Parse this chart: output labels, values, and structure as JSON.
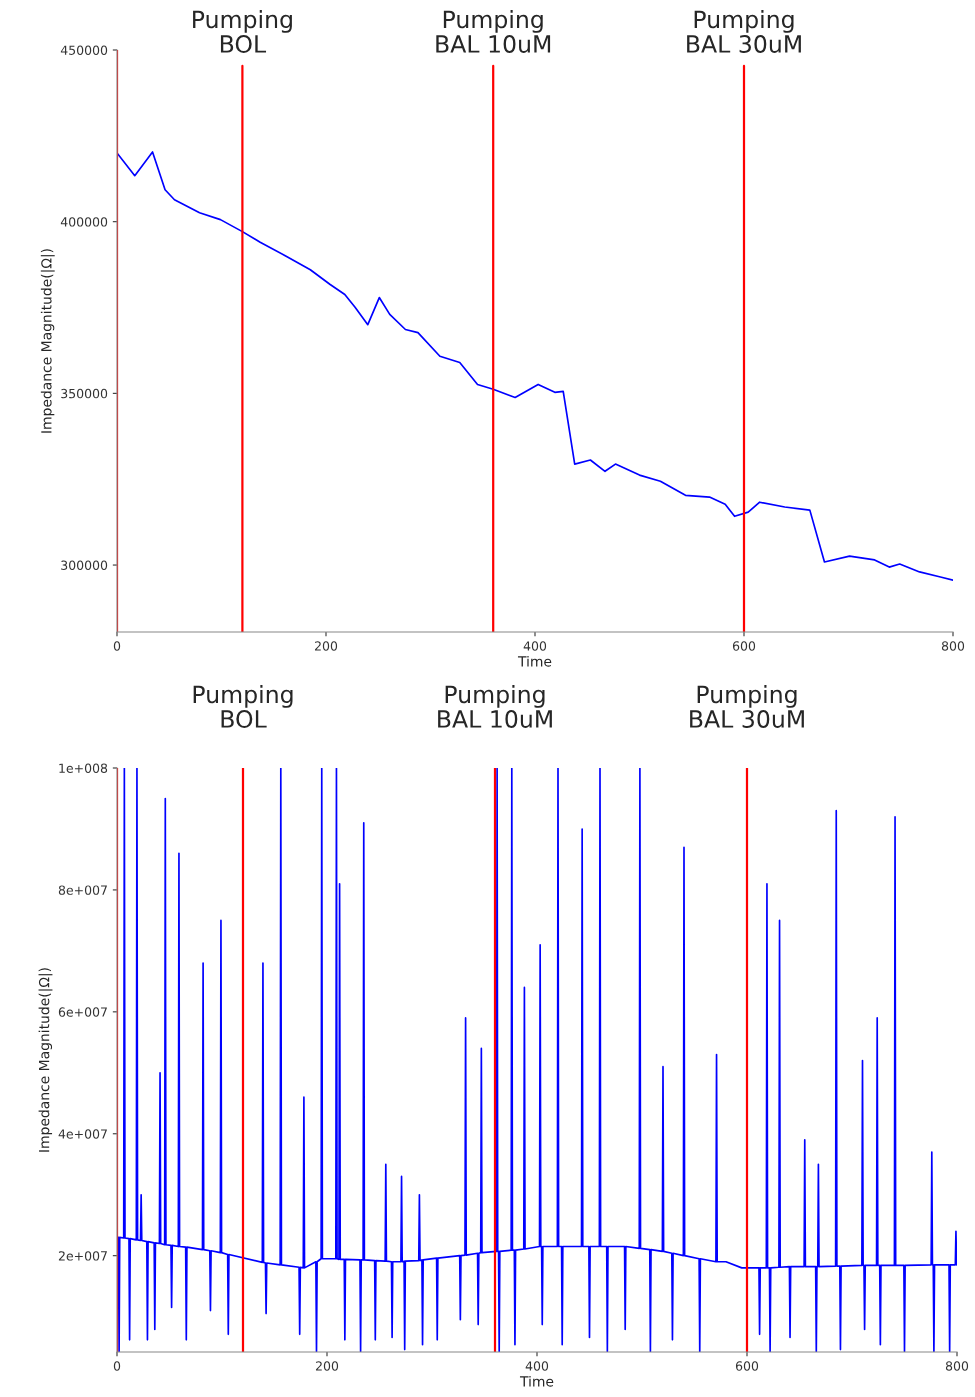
{
  "chart_data": [
    {
      "type": "line",
      "xlabel": "Time",
      "ylabel": "Impedance Magnitude(|Ω|)",
      "xlim": [
        0,
        800
      ],
      "ylim": [
        280500,
        450000
      ],
      "xticks": [
        0,
        200,
        400,
        600,
        800
      ],
      "yticks": [
        300000,
        350000,
        400000,
        450000
      ],
      "grid": false,
      "legend": false,
      "ref_lines": [
        {
          "axis": "x",
          "value": 0,
          "color": "#ff0000"
        },
        {
          "axis": "x",
          "value": 120,
          "label": "Pumping\nBOL",
          "color": "#ff0000"
        },
        {
          "axis": "x",
          "value": 360,
          "label": "Pumping\nBAL 10uM",
          "color": "#ff0000"
        },
        {
          "axis": "x",
          "value": 600,
          "label": "Pumping\nBAL 30uM",
          "color": "#ff0000"
        }
      ],
      "series": [
        {
          "color": "#0000ff",
          "x": [
            0,
            17,
            34,
            46,
            55,
            79,
            99,
            120,
            137,
            161,
            185,
            204,
            218,
            228,
            240,
            251,
            261,
            276,
            288,
            309,
            328,
            345,
            360,
            381,
            403,
            419,
            427,
            438,
            453,
            467,
            477,
            500,
            520,
            544,
            567,
            582,
            591,
            604,
            615,
            639,
            663,
            677,
            701,
            725,
            739,
            749,
            768,
            788,
            800
          ],
          "values": [
            420000,
            413400,
            420300,
            409300,
            406400,
            402600,
            400600,
            397100,
            394000,
            390100,
            386000,
            381700,
            378800,
            375000,
            370000,
            377900,
            373000,
            368600,
            367700,
            360800,
            359000,
            352600,
            351200,
            348800,
            352600,
            350300,
            350600,
            329400,
            330600,
            327300,
            329400,
            326200,
            324400,
            320300,
            319800,
            317700,
            314200,
            315400,
            318300,
            316900,
            316000,
            300900,
            302600,
            301500,
            299400,
            300300,
            298000,
            296500,
            295600
          ]
        }
      ]
    },
    {
      "type": "line",
      "xlabel": "Time",
      "ylabel": "Impedance Magnitude(|Ω|)",
      "xlim": [
        0,
        800
      ],
      "ylim": [
        4200000,
        100000000
      ],
      "xticks": [
        0,
        200,
        400,
        600,
        800
      ],
      "yticks": [
        {
          "value": 20000000,
          "label": "2e+007"
        },
        {
          "value": 40000000,
          "label": "4e+007"
        },
        {
          "value": 60000000,
          "label": "6e+007"
        },
        {
          "value": 80000000,
          "label": "8e+007"
        },
        {
          "value": 100000000,
          "label": "1e+008"
        }
      ],
      "grid": false,
      "legend": false,
      "ref_lines": [
        {
          "axis": "x",
          "value": 0,
          "color": "#ff0000"
        },
        {
          "axis": "x",
          "value": 120,
          "label": "Pumping\nBOL",
          "color": "#ff0000"
        },
        {
          "axis": "x",
          "value": 360,
          "label": "Pumping\nBAL 10uM",
          "color": "#ff0000"
        },
        {
          "axis": "x",
          "value": 600,
          "label": "Pumping\nBAL 30uM",
          "color": "#ff0000"
        }
      ],
      "series": [
        {
          "color": "#0000ff",
          "x": [
            0,
            1.4,
            2,
            2.6,
            6.4,
            7,
            7.6,
            11.4,
            12,
            12.6,
            18.4,
            19,
            19.6,
            22.4,
            23,
            23.6,
            28.4,
            29,
            29.6,
            35.4,
            36,
            36.6,
            40.4,
            41,
            41.6,
            45.4,
            46,
            46.6,
            51.4,
            52,
            52.6,
            58.4,
            59,
            59.6,
            65.4,
            66,
            66.6,
            81.4,
            82,
            82.6,
            88.4,
            89,
            89.6,
            98.4,
            99,
            99.6,
            105.4,
            106,
            106.6,
            138.4,
            139,
            139.6,
            141.4,
            142,
            142.6,
            155.4,
            156,
            156.6,
            173.4,
            174,
            174.6,
            177.4,
            178,
            178.6,
            189.4,
            190,
            190.6,
            194.4,
            195,
            195.6,
            208.4,
            209,
            209.6,
            211.4,
            212,
            212.6,
            216.4,
            217,
            217.6,
            231.4,
            232,
            232.6,
            234.4,
            235,
            235.6,
            245.4,
            246,
            246.6,
            255.4,
            256,
            256.6,
            261.4,
            262,
            262.6,
            270.4,
            271,
            271.6,
            273.4,
            274,
            274.6,
            287.4,
            288,
            288.6,
            290.4,
            291,
            291.6,
            304.4,
            305,
            305.6,
            326.4,
            327,
            327.6,
            331.4,
            332,
            332.6,
            343.4,
            344,
            344.6,
            346.4,
            347,
            347.6,
            361.4,
            362,
            362.6,
            363.4,
            364,
            364.6,
            375.4,
            376,
            376.6,
            378.4,
            379,
            379.6,
            387.4,
            388,
            388.6,
            402.4,
            403,
            403.6,
            404.4,
            405,
            405.6,
            419.4,
            420,
            420.6,
            423.4,
            424,
            424.6,
            442.4,
            443,
            443.6,
            449.4,
            450,
            450.6,
            459.4,
            460,
            460.6,
            466.4,
            467,
            467.6,
            483.4,
            484,
            484.6,
            497.4,
            498,
            498.6,
            507.4,
            508,
            508.6,
            519.4,
            520,
            520.6,
            528.4,
            529,
            529.6,
            539.4,
            540,
            540.6,
            554.4,
            555,
            555.6,
            570.4,
            571,
            571.6,
            580,
            595,
            611.4,
            612,
            612.6,
            618.4,
            619,
            619.6,
            621.4,
            622,
            622.6,
            630.4,
            631,
            631.6,
            640.4,
            641,
            641.6,
            654.4,
            655,
            655.6,
            665.4,
            666,
            666.6,
            667.4,
            668,
            668.6,
            684.4,
            685,
            685.6,
            688.4,
            689,
            689.6,
            709.4,
            710,
            710.6,
            711.4,
            712,
            712.6,
            723.4,
            724,
            724.6,
            726.4,
            727,
            727.6,
            740.4,
            741,
            741.6,
            749.4,
            750,
            750.6,
            775.4,
            776,
            776.6,
            777.4,
            778,
            778.6,
            792.4,
            793,
            793.6,
            798.4,
            799,
            799.6,
            800
          ],
          "values": [
            23000000.0,
            23000000.0,
            4300000.0,
            23000000.0,
            22900000.0,
            100000000.0,
            22900000.0,
            22800000.0,
            6200000.0,
            22800000.0,
            22600000.0,
            100000000.0,
            22600000.0,
            22500000.0,
            30000000.0,
            22500000.0,
            22300000.0,
            6200000.0,
            22300000.0,
            22100000.0,
            7900000.0,
            22100000.0,
            22000000.0,
            50000000.0,
            22000000.0,
            21800000.0,
            95000000.0,
            21800000.0,
            21700000.0,
            11500000.0,
            21700000.0,
            21500000.0,
            86000000.0,
            21500000.0,
            21400000.0,
            6200000.0,
            21400000.0,
            21000000.0,
            68000000.0,
            21000000.0,
            20800000.0,
            11000000.0,
            20800000.0,
            20500000.0,
            75000000.0,
            20500000.0,
            20200000.0,
            7100000.0,
            20200000.0,
            18900000.0,
            68000000.0,
            18900000.0,
            18800000.0,
            10500000.0,
            18800000.0,
            18500000.0,
            100000000.0,
            18500000.0,
            18100000.0,
            7100000.0,
            18100000.0,
            18000000.0,
            46000000.0,
            18000000.0,
            19000000.0,
            4300000.0,
            19000000.0,
            19500000.0,
            100000000.0,
            19500000.0,
            19500000.0,
            100000000.0,
            19500000.0,
            19400000.0,
            81000000.0,
            19400000.0,
            19400000.0,
            6200000.0,
            19400000.0,
            19300000.0,
            4300000.0,
            19300000.0,
            19300000.0,
            91000000.0,
            19300000.0,
            19200000.0,
            6200000.0,
            19200000.0,
            19100000.0,
            35000000.0,
            19100000.0,
            19000000.0,
            6600000.0,
            19000000.0,
            19000000.0,
            33000000.0,
            19000000.0,
            19100000.0,
            4600000.0,
            19100000.0,
            19200000.0,
            30000000.0,
            19200000.0,
            19300000.0,
            5400000.0,
            19300000.0,
            19600000.0,
            6200000.0,
            19600000.0,
            20000000.0,
            9500000.0,
            20000000.0,
            20100000.0,
            59000000.0,
            20100000.0,
            20400000.0,
            8700000.0,
            20400000.0,
            20500000.0,
            54000000.0,
            20500000.0,
            20700000.0,
            100000000.0,
            20700000.0,
            20700000.0,
            4300000.0,
            20700000.0,
            20900000.0,
            100000000.0,
            20900000.0,
            20900000.0,
            5400000.0,
            20900000.0,
            21100000.0,
            64000000.0,
            21100000.0,
            21500000.0,
            71000000.0,
            21500000.0,
            21500000.0,
            8700000.0,
            21500000.0,
            21500000.0,
            100000000.0,
            21500000.0,
            21500000.0,
            5400000.0,
            21500000.0,
            21500000.0,
            90000000.0,
            21500000.0,
            21500000.0,
            6600000.0,
            21500000.0,
            21500000.0,
            100000000.0,
            21500000.0,
            21500000.0,
            4300000.0,
            21500000.0,
            21500000.0,
            7900000.0,
            21500000.0,
            21200000.0,
            100000000.0,
            21200000.0,
            21000000.0,
            4300000.0,
            21000000.0,
            20700000.0,
            51000000.0,
            20700000.0,
            20400000.0,
            6200000.0,
            20400000.0,
            20000000.0,
            87000000.0,
            20000000.0,
            19500000.0,
            4300000.0,
            19500000.0,
            19000000.0,
            53000000.0,
            19000000.0,
            19000000.0,
            18000000.0,
            18000000.0,
            7100000.0,
            18000000.0,
            18000000.0,
            81000000.0,
            18000000.0,
            18000000.0,
            4300000.0,
            18000000.0,
            18100000.0,
            75000000.0,
            18100000.0,
            18200000.0,
            6600000.0,
            18200000.0,
            18200000.0,
            39000000.0,
            18200000.0,
            18200000.0,
            4300000.0,
            18200000.0,
            18200000.0,
            35000000.0,
            18200000.0,
            18300000.0,
            93000000.0,
            18300000.0,
            18300000.0,
            4600000.0,
            18300000.0,
            18400000.0,
            52000000.0,
            18400000.0,
            18400000.0,
            7900000.0,
            18400000.0,
            18400000.0,
            59000000.0,
            18400000.0,
            18400000.0,
            5400000.0,
            18400000.0,
            18400000.0,
            92000000.0,
            18400000.0,
            18400000.0,
            4300000.0,
            18400000.0,
            18500000.0,
            37000000.0,
            18500000.0,
            18500000.0,
            4300000.0,
            18500000.0,
            18500000.0,
            4300000.0,
            18500000.0,
            18500000.0,
            24000000.0,
            18500000.0,
            18500000.0
          ]
        }
      ]
    }
  ]
}
